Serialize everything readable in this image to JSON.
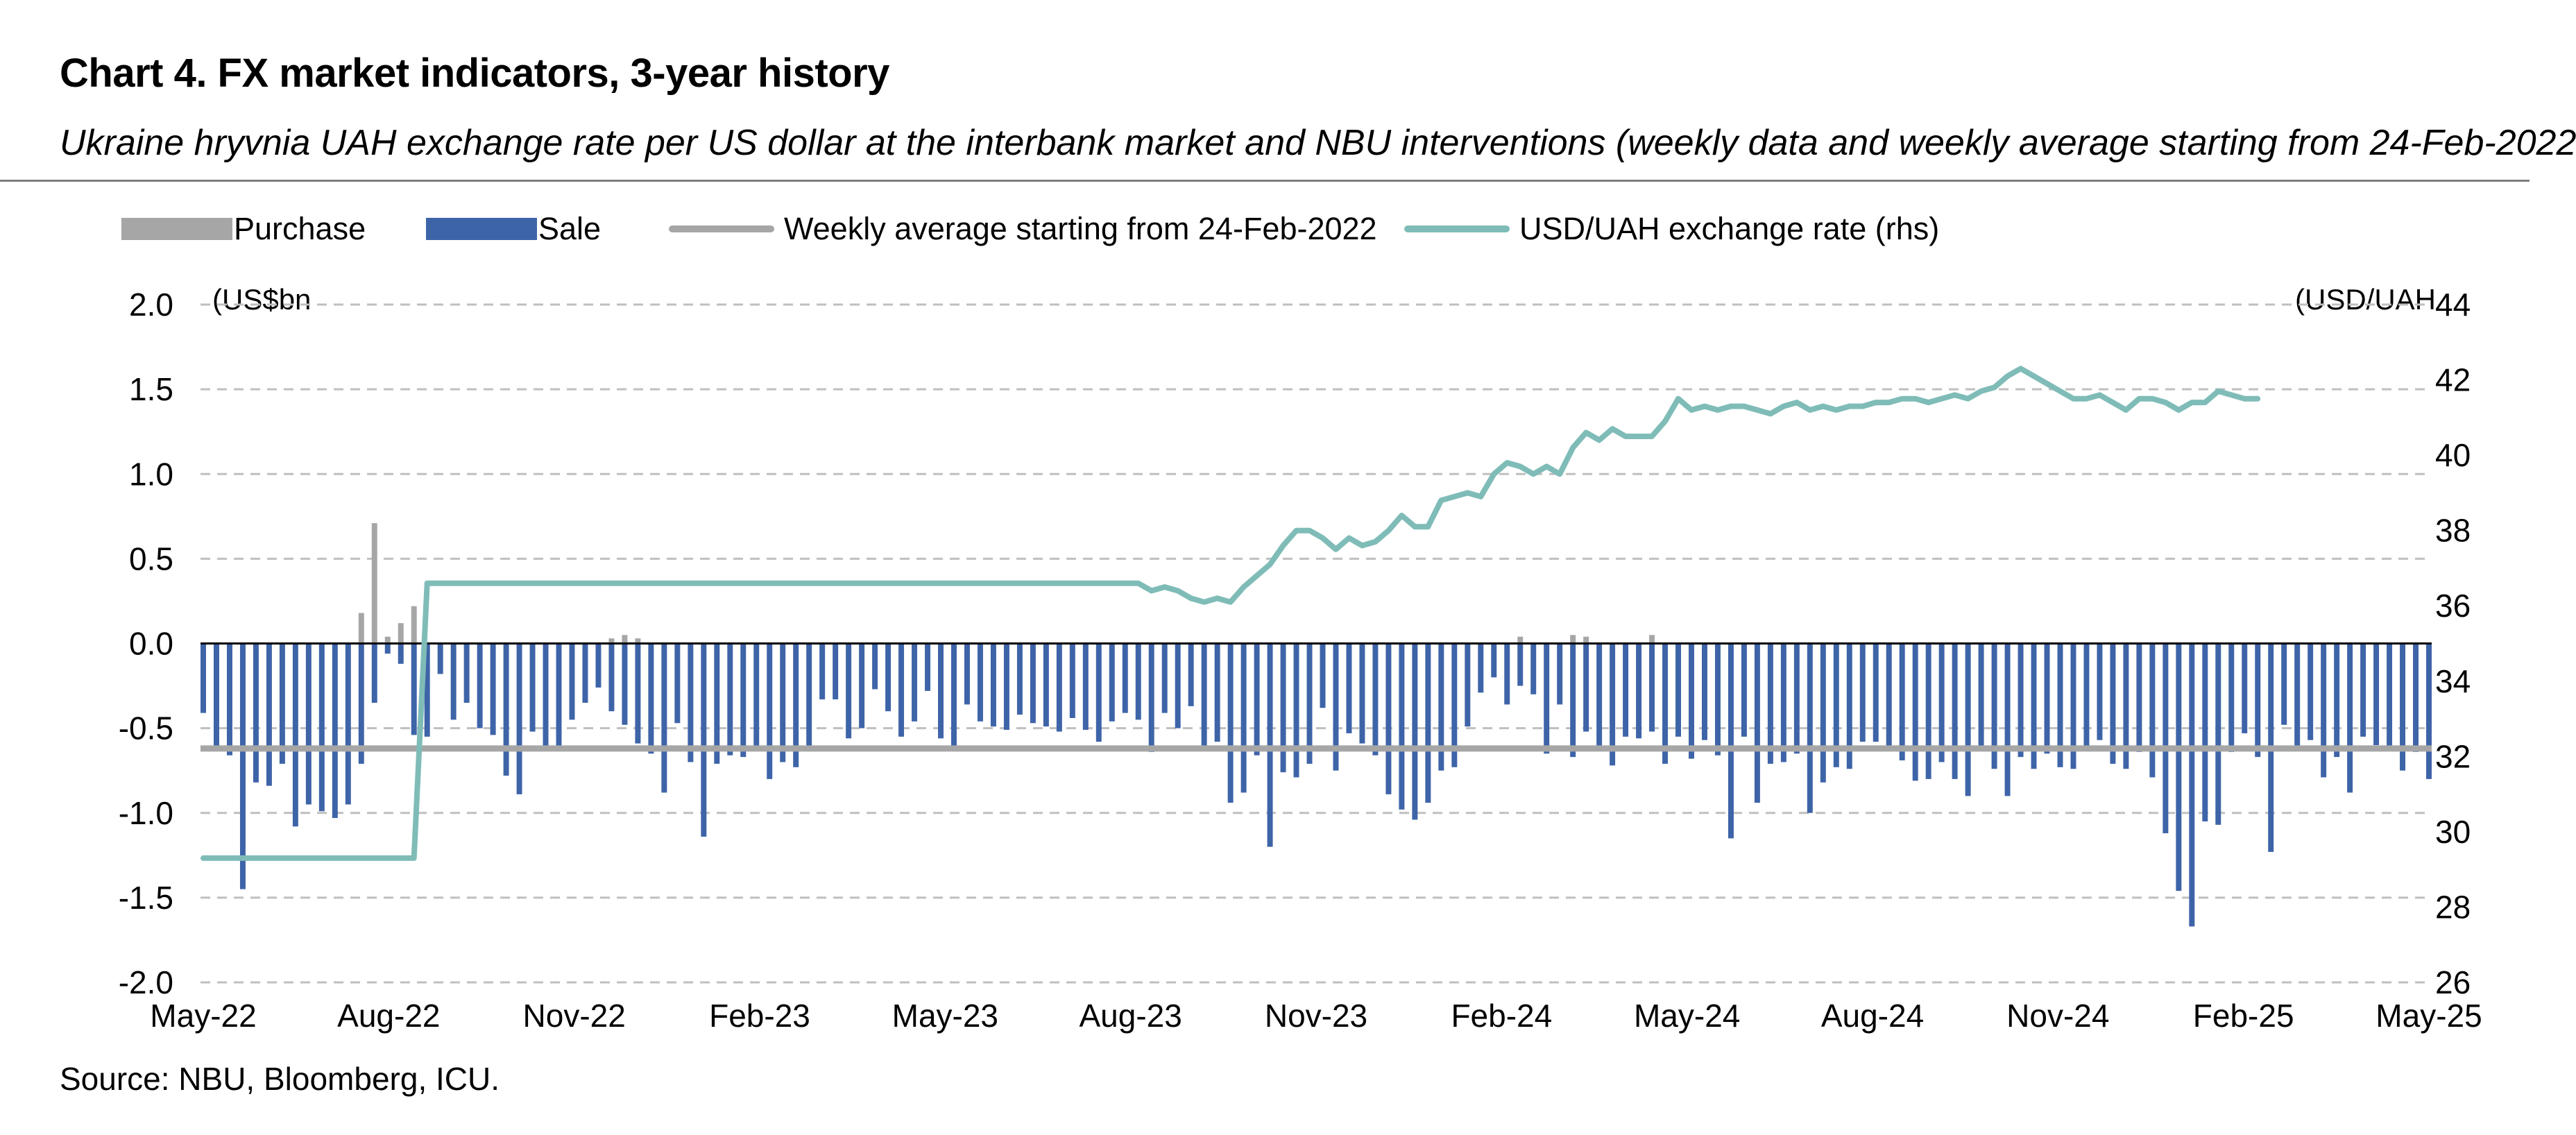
{
  "title": "Chart 4. FX market indicators, 3-year history",
  "subtitle": "Ukraine hryvnia UAH exchange rate per US dollar at the interbank market and NBU interventions (weekly data and weekly average starting from 24-Feb-2022",
  "legend": {
    "purchase": "Purchase",
    "sale": "Sale",
    "weekly_avg": "Weekly average starting from 24-Feb-2022",
    "fx_rate": "USD/UAH exchange rate (rhs)"
  },
  "units": {
    "left": "(US$bn",
    "right": "(USD/UAH"
  },
  "source": "Source: NBU, Bloomberg, ICU.",
  "colors": {
    "purchase": "#a6a6a6",
    "sale": "#3e64a8",
    "weekly_avg": "#a6a6a6",
    "fx_rate": "#7fbcb8",
    "grid": "#bfbfbf"
  },
  "chart_data": {
    "type": "bar",
    "x_ticks": [
      "May-22",
      "Aug-22",
      "Nov-22",
      "Feb-23",
      "May-23",
      "Aug-23",
      "Nov-23",
      "Feb-24",
      "May-24",
      "Aug-24",
      "Nov-24",
      "Feb-25",
      "May-25"
    ],
    "y_left": {
      "ticks": [
        "2.0",
        "1.5",
        "1.0",
        "0.5",
        "0.0",
        "-0.5",
        "-1.0",
        "-1.5",
        "-2.0"
      ],
      "range": [
        -2.0,
        2.0
      ]
    },
    "y_right": {
      "ticks": [
        "44",
        "42",
        "40",
        "38",
        "36",
        "34",
        "32",
        "30",
        "28",
        "26"
      ],
      "range": [
        26,
        44
      ]
    },
    "series": [
      {
        "name": "Sale",
        "type": "bar",
        "values": [
          -0.41,
          -0.63,
          -0.66,
          -1.45,
          -0.82,
          -0.84,
          -0.71,
          -1.08,
          -0.95,
          -0.99,
          -1.03,
          -0.95,
          -0.71,
          -0.35,
          -0.06,
          -0.12,
          -0.54,
          -0.55,
          -0.18,
          -0.45,
          -0.35,
          -0.5,
          -0.54,
          -0.78,
          -0.89,
          -0.52,
          -0.61,
          -0.63,
          -0.45,
          -0.35,
          -0.26,
          -0.4,
          -0.48,
          -0.59,
          -0.65,
          -0.88,
          -0.47,
          -0.7,
          -1.14,
          -0.71,
          -0.66,
          -0.67,
          -0.62,
          -0.8,
          -0.7,
          -0.73,
          -0.63,
          -0.33,
          -0.33,
          -0.56,
          -0.5,
          -0.27,
          -0.4,
          -0.55,
          -0.46,
          -0.28,
          -0.56,
          -0.63,
          -0.36,
          -0.46,
          -0.49,
          -0.51,
          -0.42,
          -0.47,
          -0.49,
          -0.52,
          -0.44,
          -0.51,
          -0.58,
          -0.46,
          -0.41,
          -0.45,
          -0.64,
          -0.41,
          -0.5,
          -0.37,
          -0.62,
          -0.58,
          -0.94,
          -0.88,
          -0.66,
          -1.2,
          -0.76,
          -0.79,
          -0.71,
          -0.38,
          -0.75,
          -0.53,
          -0.59,
          -0.66,
          -0.89,
          -0.98,
          -1.04,
          -0.94,
          -0.75,
          -0.73,
          -0.49,
          -0.29,
          -0.2,
          -0.36,
          -0.25,
          -0.3,
          -0.65,
          -0.36,
          -0.67,
          -0.52,
          -0.62,
          -0.72,
          -0.55,
          -0.56,
          -0.52,
          -0.71,
          -0.55,
          -0.68,
          -0.57,
          -0.66,
          -1.15,
          -0.55,
          -0.94,
          -0.71,
          -0.7,
          -0.65,
          -1.0,
          -0.82,
          -0.73,
          -0.74,
          -0.58,
          -0.58,
          -0.63,
          -0.69,
          -0.81,
          -0.8,
          -0.7,
          -0.8,
          -0.9,
          -0.62,
          -0.74,
          -0.9,
          -0.67,
          -0.74,
          -0.65,
          -0.73,
          -0.74,
          -0.61,
          -0.57,
          -0.71,
          -0.74,
          -0.64,
          -0.79,
          -1.12,
          -1.46,
          -1.67,
          -1.05,
          -1.07,
          -0.64,
          -0.53,
          -0.67,
          -1.23,
          -0.48,
          -0.62,
          -0.57,
          -0.79,
          -0.67,
          -0.88,
          -0.55,
          -0.6,
          -0.63,
          -0.75,
          -0.64,
          -0.8
        ]
      },
      {
        "name": "Purchase",
        "type": "bar",
        "values": [
          0,
          0,
          0,
          0,
          0,
          0,
          0,
          0,
          0,
          0,
          0,
          0,
          0.18,
          0.71,
          0.04,
          0.12,
          0.22,
          0,
          0,
          0,
          0,
          0,
          0,
          0,
          0,
          0,
          0,
          0,
          0,
          0,
          0,
          0.03,
          0.05,
          0.03,
          0,
          0,
          0,
          0,
          0,
          0,
          0,
          0,
          0,
          0,
          0,
          0,
          0,
          0,
          0,
          0,
          0,
          0,
          0,
          0,
          0,
          0,
          0,
          0,
          0,
          0,
          0,
          0,
          0,
          0,
          0,
          0,
          0,
          0,
          0,
          0,
          0,
          0,
          0,
          0,
          0,
          0,
          0,
          0,
          0,
          0,
          0,
          0,
          0,
          0,
          0,
          0,
          0,
          0,
          0,
          0,
          0,
          0,
          0,
          0,
          0,
          0,
          0,
          0,
          0,
          0,
          0.04,
          0,
          0,
          0,
          0.05,
          0.04,
          0,
          0,
          0,
          0,
          0.05,
          0,
          0,
          0,
          0,
          0,
          0,
          0,
          0,
          0,
          0,
          0,
          0,
          0,
          0,
          0,
          0,
          0,
          0,
          0,
          0,
          0,
          0,
          0,
          0,
          0,
          0,
          0,
          0,
          0,
          0,
          0,
          0,
          0,
          0,
          0,
          0,
          0,
          0,
          0,
          0,
          0,
          0,
          0,
          0,
          0,
          0,
          0,
          0,
          0,
          0,
          0,
          0,
          0,
          0,
          0,
          0,
          0,
          0,
          0,
          0
        ]
      },
      {
        "name": "Weekly average starting from 24-Feb-2022",
        "type": "line",
        "axis": "left",
        "values": [
          -0.62
        ]
      },
      {
        "name": "USD/UAH exchange rate (rhs)",
        "type": "line",
        "axis": "right",
        "points": [
          [
            0,
            29.3
          ],
          [
            16,
            29.3
          ],
          [
            17,
            36.6
          ],
          [
            71,
            36.6
          ],
          [
            72,
            36.4
          ],
          [
            73,
            36.5
          ],
          [
            74,
            36.4
          ],
          [
            75,
            36.2
          ],
          [
            76,
            36.1
          ],
          [
            77,
            36.2
          ],
          [
            78,
            36.1
          ],
          [
            79,
            36.5
          ],
          [
            80,
            36.8
          ],
          [
            81,
            37.1
          ],
          [
            82,
            37.6
          ],
          [
            83,
            38.0
          ],
          [
            84,
            38.0
          ],
          [
            85,
            37.8
          ],
          [
            86,
            37.5
          ],
          [
            87,
            37.8
          ],
          [
            88,
            37.6
          ],
          [
            89,
            37.7
          ],
          [
            90,
            38.0
          ],
          [
            91,
            38.4
          ],
          [
            92,
            38.1
          ],
          [
            93,
            38.1
          ],
          [
            94,
            38.8
          ],
          [
            95,
            38.9
          ],
          [
            96,
            39.0
          ],
          [
            97,
            38.9
          ],
          [
            98,
            39.5
          ],
          [
            99,
            39.8
          ],
          [
            100,
            39.7
          ],
          [
            101,
            39.5
          ],
          [
            102,
            39.7
          ],
          [
            103,
            39.5
          ],
          [
            104,
            40.2
          ],
          [
            105,
            40.6
          ],
          [
            106,
            40.4
          ],
          [
            107,
            40.7
          ],
          [
            108,
            40.5
          ],
          [
            109,
            40.5
          ],
          [
            110,
            40.5
          ],
          [
            111,
            40.9
          ],
          [
            112,
            41.5
          ],
          [
            113,
            41.2
          ],
          [
            114,
            41.3
          ],
          [
            115,
            41.2
          ],
          [
            116,
            41.3
          ],
          [
            117,
            41.3
          ],
          [
            118,
            41.2
          ],
          [
            119,
            41.1
          ],
          [
            120,
            41.3
          ],
          [
            121,
            41.4
          ],
          [
            122,
            41.2
          ],
          [
            123,
            41.3
          ],
          [
            124,
            41.2
          ],
          [
            125,
            41.3
          ],
          [
            126,
            41.3
          ],
          [
            127,
            41.4
          ],
          [
            128,
            41.4
          ],
          [
            129,
            41.5
          ],
          [
            130,
            41.5
          ],
          [
            131,
            41.4
          ],
          [
            132,
            41.5
          ],
          [
            133,
            41.6
          ],
          [
            134,
            41.5
          ],
          [
            135,
            41.7
          ],
          [
            136,
            41.8
          ],
          [
            137,
            42.1
          ],
          [
            138,
            42.3
          ],
          [
            139,
            42.1
          ],
          [
            140,
            41.9
          ],
          [
            141,
            41.7
          ],
          [
            142,
            41.5
          ],
          [
            143,
            41.5
          ],
          [
            144,
            41.6
          ],
          [
            145,
            41.4
          ],
          [
            146,
            41.2
          ],
          [
            147,
            41.5
          ],
          [
            148,
            41.5
          ],
          [
            149,
            41.4
          ],
          [
            150,
            41.2
          ],
          [
            151,
            41.4
          ],
          [
            152,
            41.4
          ],
          [
            153,
            41.7
          ],
          [
            154,
            41.6
          ],
          [
            155,
            41.5
          ],
          [
            156,
            41.5
          ]
        ]
      }
    ],
    "grid": true,
    "legend_position": "top"
  }
}
